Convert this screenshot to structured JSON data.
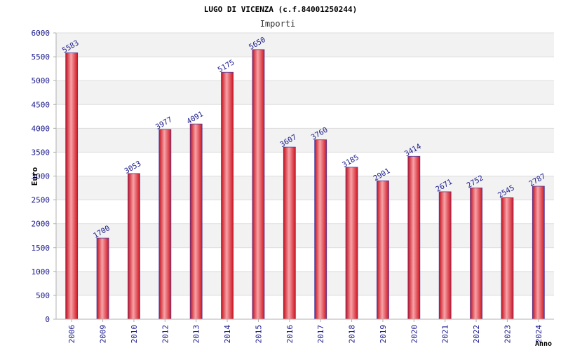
{
  "chart_data": {
    "type": "bar",
    "title": "LUGO DI VICENZA (c.f.84001250244)",
    "subtitle": "Importi",
    "xlabel": "Anno",
    "ylabel": "Euro",
    "categories": [
      "2006",
      "2009",
      "2010",
      "2012",
      "2013",
      "2014",
      "2015",
      "2016",
      "2017",
      "2018",
      "2019",
      "2020",
      "2021",
      "2022",
      "2023",
      "2024"
    ],
    "values": [
      5583,
      1700,
      3053,
      3977,
      4091,
      5175,
      5650,
      3607,
      3760,
      3185,
      2901,
      3414,
      2671,
      2752,
      2545,
      2787
    ],
    "ylim": [
      0,
      6000
    ],
    "yticks": [
      0,
      500,
      1000,
      1500,
      2000,
      2500,
      3000,
      3500,
      4000,
      4500,
      5000,
      5500,
      6000
    ],
    "grid": true,
    "colors": {
      "bar": "#e8212b",
      "bar_highlight": "#f7a3a8",
      "bar_outline": "#4a3aa0",
      "label": "#1a1a8c",
      "band": "#f2f2f2",
      "axis": "#b0b0b0"
    }
  }
}
